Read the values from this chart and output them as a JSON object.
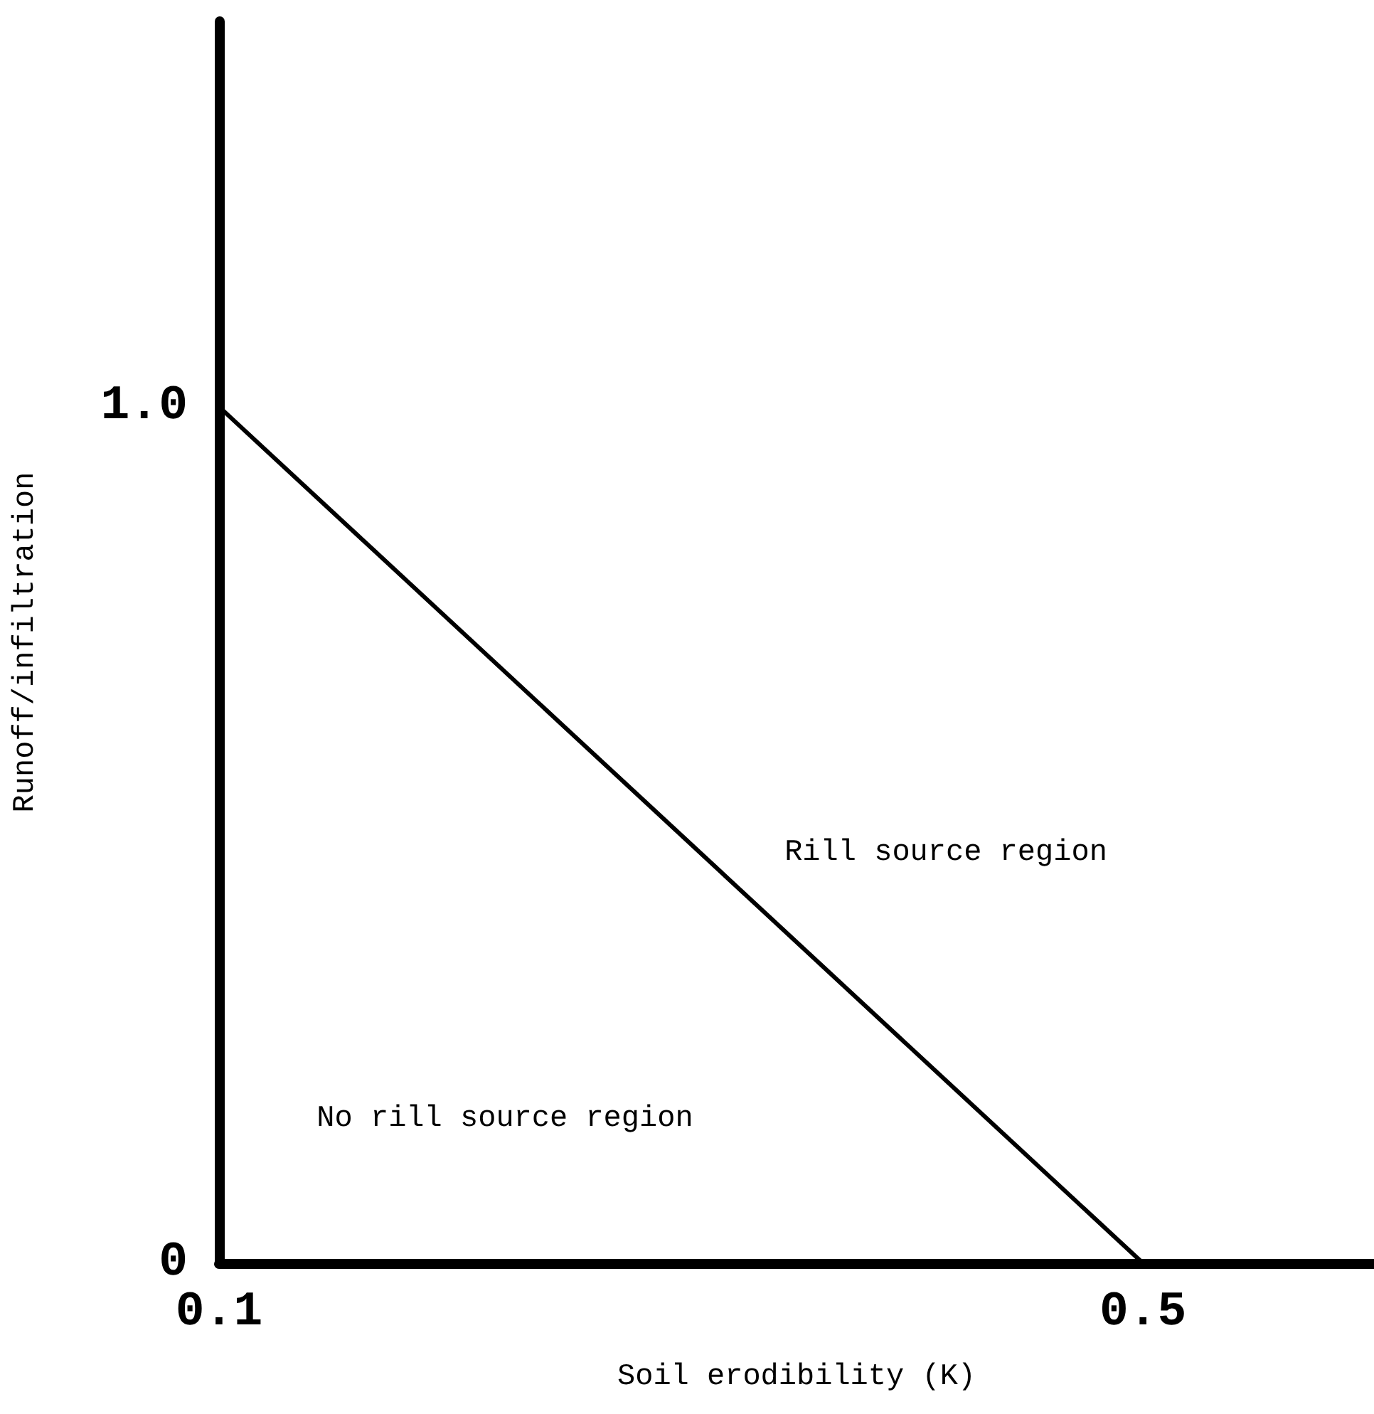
{
  "chart_data": {
    "type": "line",
    "xlabel": "Soil erodibility (K)",
    "ylabel": "Runoff/infiltration",
    "x": [
      0.1,
      0.5
    ],
    "series": [
      {
        "color": "#000000",
        "values": [
          1.0,
          0
        ]
      }
    ],
    "xlim": [
      0.1,
      0.6
    ],
    "ylim": [
      0,
      1.45
    ],
    "xticks": [
      0.1,
      0.5
    ],
    "yticks": [
      0,
      {
        "value": 1,
        "label": "1.0"
      }
    ],
    "grid": false,
    "line_style": "solid",
    "annotations": [
      "Rill source region",
      "No rill source region"
    ]
  }
}
